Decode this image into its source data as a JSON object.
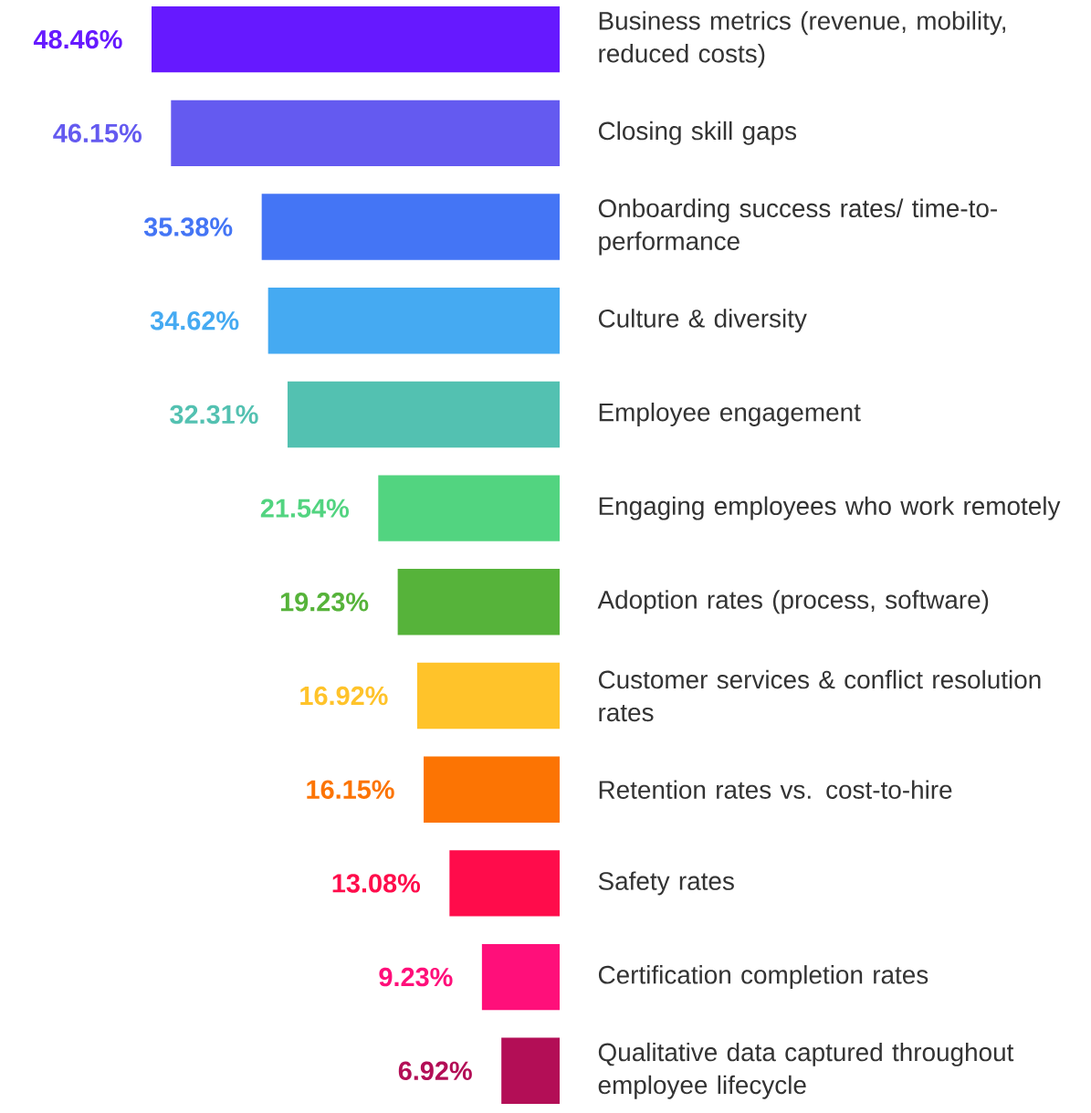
{
  "chart_data": {
    "type": "bar",
    "orientation": "horizontal",
    "data_labels": true,
    "tick_labels": "y",
    "categories": [
      "Business metrics (revenue, mobility, reduced costs)",
      "Closing skill gaps",
      "Onboarding success rates/ time-to-performance",
      "Culture & diversity",
      "Employee engagement",
      "Engaging employees who work remotely",
      "Adoption rates (process, software)",
      "Customer services & conflict resolution rates",
      "Retention rates vs. cost-to-hire",
      "Safety rates",
      "Certification completion rates",
      "Qualitative data captured throughout employee lifecycle"
    ],
    "values": [
      48.46,
      46.15,
      35.38,
      34.62,
      32.31,
      21.54,
      19.23,
      16.92,
      16.15,
      13.08,
      9.23,
      6.92
    ],
    "value_labels": [
      "48.46%",
      "46.15%",
      "35.38%",
      "34.62%",
      "32.31%",
      "21.54%",
      "19.23%",
      "16.92%",
      "16.15%",
      "13.08%",
      "9.23%",
      "6.92%"
    ],
    "colors": [
      "#6619FF",
      "#645AF0",
      "#4475F5",
      "#45AAF2",
      "#53C1B1",
      "#52D480",
      "#56B33A",
      "#FFC32A",
      "#FC7403",
      "#FF0C4B",
      "#FF0F7A",
      "#B30E56"
    ]
  }
}
